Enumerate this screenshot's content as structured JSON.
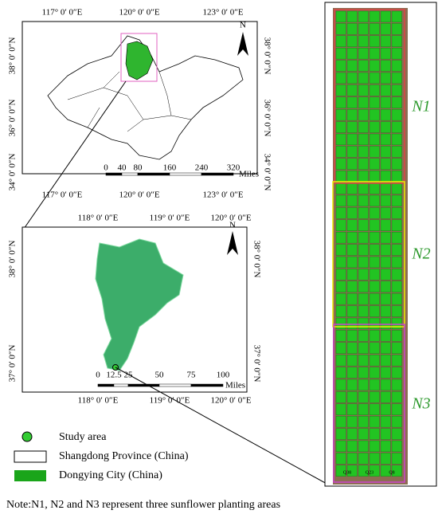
{
  "top_map": {
    "x_labels_top": [
      "117° 0′ 0″E",
      "120° 0′ 0″E",
      "123° 0′ 0″E"
    ],
    "x_labels_bottom": [
      "117° 0′ 0″E",
      "120° 0′ 0″E",
      "123° 0′ 0″E"
    ],
    "y_labels_left": [
      "38° 0′ 0″N",
      "36° 0′ 0″N",
      "34° 0′ 0″N"
    ],
    "y_labels_right": [
      "38° 0′ 0″N",
      "36° 0′ 0″N",
      "34° 0′ 0″N"
    ],
    "scale_labels": [
      "0",
      "40",
      "80",
      "160",
      "240",
      "320"
    ],
    "scale_unit": "Miles",
    "north": "N"
  },
  "inset_map": {
    "x_labels_top": [
      "118° 0′ 0″E",
      "119° 0′ 0″E",
      "120° 0′ 0″E"
    ],
    "x_labels_bottom": [
      "118° 0′ 0″E",
      "119° 0′ 0″E",
      "120° 0′ 0″E"
    ],
    "y_labels_left": [
      "38° 0′ 0″N",
      "37° 0′ 0″N"
    ],
    "y_labels_right": [
      "38° 0′ 0″N",
      "37° 0′ 0″N"
    ],
    "scale_labels": [
      "0",
      "12.5",
      "25",
      "50",
      "75",
      "100"
    ],
    "scale_unit": "Miles",
    "north": "N"
  },
  "photo": {
    "areas": [
      "N1",
      "N2",
      "N3"
    ],
    "plot_labels": [
      "Q38",
      "Q23",
      "Q8"
    ]
  },
  "legend": [
    "Study area",
    "Shangdong Province (China)",
    "Dongying City (China)"
  ],
  "note": "Note:N1, N2 and N3 represent three sunflower planting areas"
}
